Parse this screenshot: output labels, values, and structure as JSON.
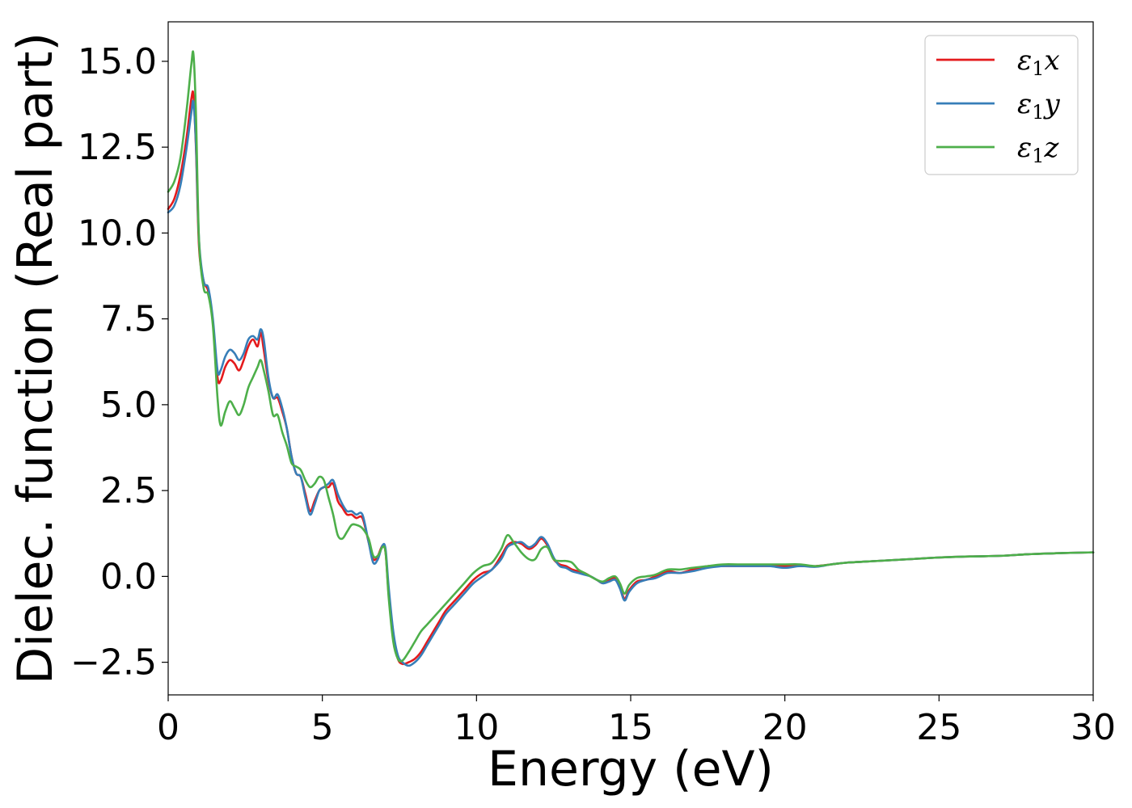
{
  "chart_data": {
    "type": "line",
    "title": "",
    "xlabel": "Energy (eV)",
    "ylabel": "Dielec. function (Real part)",
    "xlim": [
      0,
      30
    ],
    "ylim": [
      -3.45,
      16.15
    ],
    "xticks": [
      0,
      5,
      10,
      15,
      20,
      25,
      30
    ],
    "xtick_labels": [
      "0",
      "5",
      "10",
      "15",
      "20",
      "25",
      "30"
    ],
    "yticks": [
      -2.5,
      0.0,
      2.5,
      5.0,
      7.5,
      10.0,
      12.5,
      15.0
    ],
    "ytick_labels": [
      "−2.5",
      "0.0",
      "2.5",
      "5.0",
      "7.5",
      "10.0",
      "12.5",
      "15.0"
    ],
    "grid": false,
    "legend_position": "top-right",
    "series": [
      {
        "name": "ε",
        "subscript": "1",
        "suffix": "x",
        "color": "#e41a1c",
        "x": [
          0,
          0.2,
          0.4,
          0.6,
          0.75,
          0.82,
          0.9,
          1.0,
          1.15,
          1.3,
          1.45,
          1.6,
          1.7,
          1.85,
          2.0,
          2.15,
          2.3,
          2.45,
          2.6,
          2.75,
          2.9,
          3.0,
          3.1,
          3.25,
          3.4,
          3.55,
          3.7,
          3.85,
          4.0,
          4.15,
          4.3,
          4.45,
          4.6,
          4.75,
          4.9,
          5.05,
          5.2,
          5.35,
          5.5,
          5.65,
          5.8,
          5.95,
          6.1,
          6.3,
          6.5,
          6.65,
          6.8,
          6.95,
          7.05,
          7.15,
          7.3,
          7.45,
          7.6,
          7.8,
          8.0,
          8.2,
          8.4,
          8.6,
          8.8,
          9.0,
          9.3,
          9.6,
          9.9,
          10.2,
          10.5,
          10.8,
          11.0,
          11.2,
          11.45,
          11.7,
          11.9,
          12.1,
          12.3,
          12.5,
          12.7,
          12.9,
          13.1,
          13.3,
          13.5,
          13.7,
          13.9,
          14.1,
          14.3,
          14.5,
          14.65,
          14.8,
          14.95,
          15.2,
          15.5,
          15.8,
          16.2,
          16.6,
          17.0,
          17.5,
          18.0,
          18.5,
          19.0,
          19.5,
          20.0,
          20.5,
          21.0,
          21.5,
          22.0,
          23.0,
          24.0,
          25.0,
          26.0,
          27.0,
          28.0,
          29.0,
          30.0
        ],
        "y": [
          10.7,
          11.0,
          11.7,
          12.8,
          13.9,
          14.0,
          12.5,
          9.6,
          8.6,
          8.3,
          7.4,
          5.8,
          5.7,
          6.1,
          6.3,
          6.2,
          6.0,
          6.3,
          6.7,
          6.9,
          6.7,
          7.1,
          6.6,
          5.7,
          5.2,
          5.2,
          4.8,
          4.3,
          3.5,
          3.0,
          2.9,
          2.4,
          1.9,
          2.2,
          2.5,
          2.6,
          2.6,
          2.7,
          2.2,
          2.0,
          1.8,
          1.8,
          1.7,
          1.7,
          1.0,
          0.5,
          0.6,
          0.9,
          0.7,
          -0.5,
          -1.8,
          -2.4,
          -2.55,
          -2.5,
          -2.4,
          -2.2,
          -1.9,
          -1.6,
          -1.3,
          -1.0,
          -0.7,
          -0.4,
          -0.1,
          0.1,
          0.2,
          0.6,
          0.9,
          1.0,
          0.95,
          0.8,
          0.9,
          1.1,
          0.9,
          0.5,
          0.35,
          0.3,
          0.2,
          0.15,
          0.1,
          0.0,
          -0.1,
          -0.2,
          -0.1,
          -0.05,
          -0.3,
          -0.65,
          -0.4,
          -0.15,
          -0.1,
          0.0,
          0.15,
          0.1,
          0.2,
          0.3,
          0.3,
          0.3,
          0.3,
          0.3,
          0.3,
          0.3,
          0.3,
          0.35,
          0.4,
          0.45,
          0.5,
          0.55,
          0.58,
          0.6,
          0.65,
          0.68,
          0.7
        ]
      },
      {
        "name": "ε",
        "subscript": "1",
        "suffix": "y",
        "color": "#377eb8",
        "x": [
          0,
          0.2,
          0.4,
          0.6,
          0.75,
          0.82,
          0.9,
          1.0,
          1.15,
          1.3,
          1.45,
          1.6,
          1.7,
          1.85,
          2.0,
          2.15,
          2.3,
          2.45,
          2.6,
          2.75,
          2.9,
          3.0,
          3.1,
          3.25,
          3.4,
          3.55,
          3.7,
          3.85,
          4.0,
          4.15,
          4.3,
          4.45,
          4.6,
          4.75,
          4.9,
          5.05,
          5.2,
          5.35,
          5.5,
          5.65,
          5.8,
          5.95,
          6.1,
          6.3,
          6.5,
          6.65,
          6.8,
          6.95,
          7.05,
          7.15,
          7.3,
          7.45,
          7.6,
          7.8,
          8.0,
          8.2,
          8.4,
          8.6,
          8.8,
          9.0,
          9.3,
          9.6,
          9.9,
          10.2,
          10.5,
          10.8,
          11.0,
          11.2,
          11.45,
          11.7,
          11.9,
          12.1,
          12.3,
          12.5,
          12.7,
          12.9,
          13.1,
          13.3,
          13.5,
          13.7,
          13.9,
          14.1,
          14.3,
          14.5,
          14.65,
          14.8,
          14.95,
          15.2,
          15.5,
          15.8,
          16.2,
          16.6,
          17.0,
          17.5,
          18.0,
          18.5,
          19.0,
          19.5,
          20.0,
          20.5,
          21.0,
          21.5,
          22.0,
          23.0,
          24.0,
          25.0,
          26.0,
          27.0,
          28.0,
          29.0,
          30.0
        ],
        "y": [
          10.6,
          10.8,
          11.4,
          12.5,
          13.5,
          13.8,
          12.6,
          9.8,
          8.6,
          8.4,
          7.5,
          6.0,
          6.0,
          6.4,
          6.6,
          6.5,
          6.3,
          6.5,
          6.9,
          7.0,
          6.9,
          7.2,
          6.9,
          5.8,
          5.2,
          5.3,
          4.9,
          4.3,
          3.5,
          3.0,
          2.9,
          2.3,
          1.8,
          2.1,
          2.5,
          2.6,
          2.7,
          2.8,
          2.4,
          2.1,
          1.9,
          1.9,
          1.8,
          1.8,
          1.0,
          0.4,
          0.5,
          0.9,
          0.8,
          -0.3,
          -1.6,
          -2.3,
          -2.5,
          -2.6,
          -2.5,
          -2.3,
          -2.0,
          -1.7,
          -1.4,
          -1.1,
          -0.8,
          -0.5,
          -0.2,
          0.0,
          0.2,
          0.5,
          0.85,
          0.95,
          1.0,
          0.85,
          0.95,
          1.15,
          0.95,
          0.55,
          0.3,
          0.25,
          0.15,
          0.1,
          0.05,
          0.0,
          -0.1,
          -0.2,
          -0.15,
          -0.1,
          -0.35,
          -0.7,
          -0.45,
          -0.2,
          -0.1,
          -0.05,
          0.1,
          0.1,
          0.15,
          0.25,
          0.3,
          0.3,
          0.3,
          0.3,
          0.25,
          0.3,
          0.28,
          0.35,
          0.4,
          0.45,
          0.5,
          0.55,
          0.58,
          0.6,
          0.65,
          0.68,
          0.7
        ]
      },
      {
        "name": "ε",
        "subscript": "1",
        "suffix": "z",
        "color": "#4daf4a",
        "x": [
          0,
          0.2,
          0.4,
          0.6,
          0.75,
          0.82,
          0.9,
          1.0,
          1.15,
          1.3,
          1.45,
          1.6,
          1.7,
          1.85,
          2.0,
          2.15,
          2.3,
          2.45,
          2.6,
          2.75,
          2.9,
          3.0,
          3.1,
          3.25,
          3.4,
          3.55,
          3.7,
          3.85,
          4.0,
          4.15,
          4.3,
          4.45,
          4.6,
          4.75,
          4.9,
          5.05,
          5.2,
          5.35,
          5.5,
          5.65,
          5.8,
          5.95,
          6.1,
          6.3,
          6.5,
          6.65,
          6.8,
          6.95,
          7.05,
          7.15,
          7.3,
          7.45,
          7.6,
          7.8,
          8.0,
          8.2,
          8.4,
          8.6,
          8.8,
          9.0,
          9.3,
          9.6,
          9.9,
          10.2,
          10.5,
          10.8,
          11.0,
          11.2,
          11.45,
          11.7,
          11.9,
          12.1,
          12.3,
          12.5,
          12.7,
          12.9,
          13.1,
          13.3,
          13.5,
          13.7,
          13.9,
          14.1,
          14.3,
          14.5,
          14.65,
          14.8,
          14.95,
          15.2,
          15.5,
          15.8,
          16.2,
          16.6,
          17.0,
          17.5,
          18.0,
          18.5,
          19.0,
          19.5,
          20.0,
          20.5,
          21.0,
          21.5,
          22.0,
          23.0,
          24.0,
          25.0,
          26.0,
          27.0,
          28.0,
          29.0,
          30.0
        ],
        "y": [
          11.2,
          11.5,
          12.2,
          13.6,
          14.9,
          15.2,
          13.5,
          9.8,
          8.4,
          8.2,
          7.3,
          5.2,
          4.4,
          4.8,
          5.1,
          4.9,
          4.7,
          5.0,
          5.5,
          5.8,
          6.1,
          6.3,
          6.0,
          5.4,
          4.7,
          4.7,
          4.2,
          3.8,
          3.3,
          3.2,
          3.1,
          2.8,
          2.6,
          2.7,
          2.9,
          2.8,
          2.3,
          1.8,
          1.2,
          1.1,
          1.3,
          1.5,
          1.5,
          1.4,
          1.1,
          0.6,
          0.6,
          0.85,
          0.7,
          -0.6,
          -1.9,
          -2.4,
          -2.45,
          -2.2,
          -1.9,
          -1.6,
          -1.4,
          -1.2,
          -1.0,
          -0.8,
          -0.5,
          -0.2,
          0.1,
          0.3,
          0.4,
          0.8,
          1.2,
          1.0,
          0.7,
          0.5,
          0.5,
          0.8,
          0.85,
          0.5,
          0.45,
          0.45,
          0.4,
          0.2,
          0.1,
          0.0,
          -0.1,
          -0.15,
          -0.05,
          0.0,
          -0.2,
          -0.5,
          -0.25,
          -0.05,
          0.0,
          0.05,
          0.2,
          0.2,
          0.25,
          0.3,
          0.35,
          0.35,
          0.35,
          0.35,
          0.35,
          0.35,
          0.3,
          0.35,
          0.4,
          0.45,
          0.5,
          0.55,
          0.58,
          0.6,
          0.65,
          0.68,
          0.7
        ]
      }
    ]
  }
}
